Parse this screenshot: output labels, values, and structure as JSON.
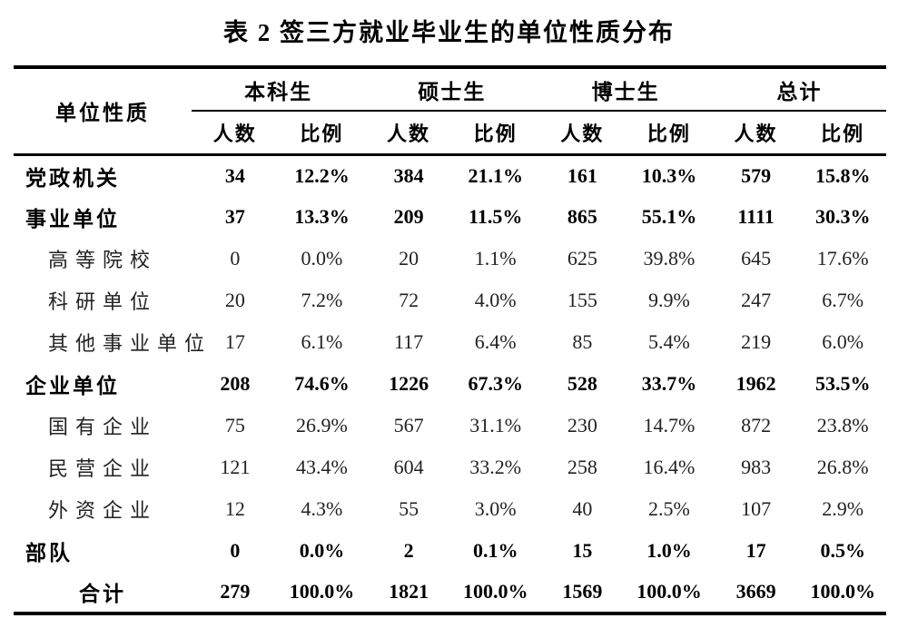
{
  "title": "表 2 签三方就业毕业生的单位性质分布",
  "table": {
    "corner_header": "单位性质",
    "groups": [
      "本科生",
      "硕士生",
      "博士生",
      "总计"
    ],
    "sub_headers": [
      "人数",
      "比例"
    ],
    "rows": [
      {
        "label": "党政机关",
        "style": "bold",
        "values": [
          "34",
          "12.2%",
          "384",
          "21.1%",
          "161",
          "10.3%",
          "579",
          "15.8%"
        ]
      },
      {
        "label": "事业单位",
        "style": "bold",
        "values": [
          "37",
          "13.3%",
          "209",
          "11.5%",
          "865",
          "55.1%",
          "1111",
          "30.3%"
        ]
      },
      {
        "label": "高等院校",
        "style": "sub",
        "values": [
          "0",
          "0.0%",
          "20",
          "1.1%",
          "625",
          "39.8%",
          "645",
          "17.6%"
        ]
      },
      {
        "label": "科研单位",
        "style": "sub",
        "values": [
          "20",
          "7.2%",
          "72",
          "4.0%",
          "155",
          "9.9%",
          "247",
          "6.7%"
        ]
      },
      {
        "label": "其他事业单位",
        "style": "sub",
        "values": [
          "17",
          "6.1%",
          "117",
          "6.4%",
          "85",
          "5.4%",
          "219",
          "6.0%"
        ]
      },
      {
        "label": "企业单位",
        "style": "bold",
        "values": [
          "208",
          "74.6%",
          "1226",
          "67.3%",
          "528",
          "33.7%",
          "1962",
          "53.5%"
        ]
      },
      {
        "label": "国有企业",
        "style": "sub",
        "values": [
          "75",
          "26.9%",
          "567",
          "31.1%",
          "230",
          "14.7%",
          "872",
          "23.8%"
        ]
      },
      {
        "label": "民营企业",
        "style": "sub",
        "values": [
          "121",
          "43.4%",
          "604",
          "33.2%",
          "258",
          "16.4%",
          "983",
          "26.8%"
        ]
      },
      {
        "label": "外资企业",
        "style": "sub",
        "values": [
          "12",
          "4.3%",
          "55",
          "3.0%",
          "40",
          "2.5%",
          "107",
          "2.9%"
        ]
      },
      {
        "label": "部队",
        "style": "bold",
        "values": [
          "0",
          "0.0%",
          "2",
          "0.1%",
          "15",
          "1.0%",
          "17",
          "0.5%"
        ]
      },
      {
        "label": "合计",
        "style": "total",
        "values": [
          "279",
          "100.0%",
          "1821",
          "100.0%",
          "1569",
          "100.0%",
          "3669",
          "100.0%"
        ]
      }
    ]
  },
  "chart_data": {
    "type": "table",
    "title": "表 2 签三方就业毕业生的单位性质分布",
    "columns": [
      "单位性质",
      "本科生 人数",
      "本科生 比例",
      "硕士生 人数",
      "硕士生 比例",
      "博士生 人数",
      "博士生 比例",
      "总计 人数",
      "总计 比例"
    ],
    "rows": [
      [
        "党政机关",
        34,
        "12.2%",
        384,
        "21.1%",
        161,
        "10.3%",
        579,
        "15.8%"
      ],
      [
        "事业单位",
        37,
        "13.3%",
        209,
        "11.5%",
        865,
        "55.1%",
        1111,
        "30.3%"
      ],
      [
        "高等院校",
        0,
        "0.0%",
        20,
        "1.1%",
        625,
        "39.8%",
        645,
        "17.6%"
      ],
      [
        "科研单位",
        20,
        "7.2%",
        72,
        "4.0%",
        155,
        "9.9%",
        247,
        "6.7%"
      ],
      [
        "其他事业单位",
        17,
        "6.1%",
        117,
        "6.4%",
        85,
        "5.4%",
        219,
        "6.0%"
      ],
      [
        "企业单位",
        208,
        "74.6%",
        1226,
        "67.3%",
        528,
        "33.7%",
        1962,
        "53.5%"
      ],
      [
        "国有企业",
        75,
        "26.9%",
        567,
        "31.1%",
        230,
        "14.7%",
        872,
        "23.8%"
      ],
      [
        "民营企业",
        121,
        "43.4%",
        604,
        "33.2%",
        258,
        "16.4%",
        983,
        "26.8%"
      ],
      [
        "外资企业",
        12,
        "4.3%",
        55,
        "3.0%",
        40,
        "2.5%",
        107,
        "2.9%"
      ],
      [
        "部队",
        0,
        "0.0%",
        2,
        "0.1%",
        15,
        "1.0%",
        17,
        "0.5%"
      ],
      [
        "合计",
        279,
        "100.0%",
        1821,
        "100.0%",
        1569,
        "100.0%",
        3669,
        "100.0%"
      ]
    ]
  }
}
